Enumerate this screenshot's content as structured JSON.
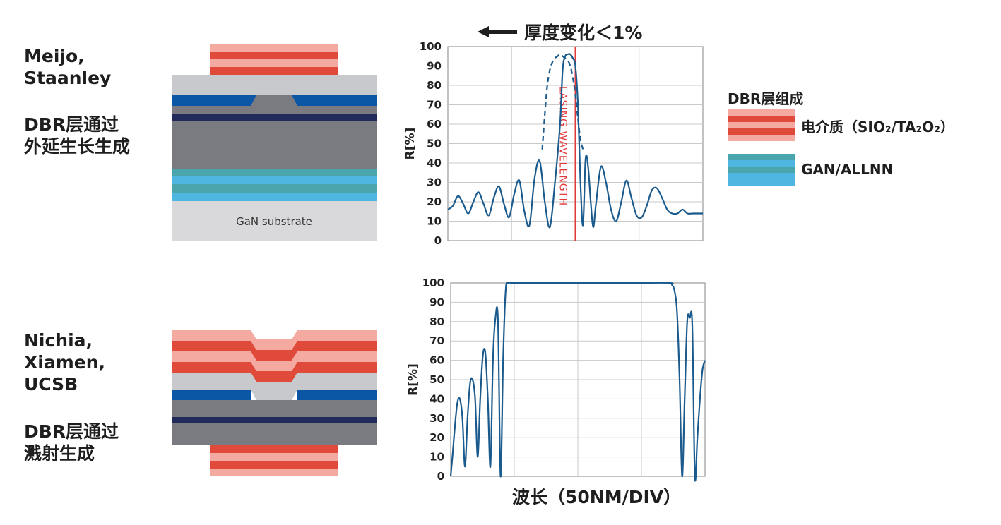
{
  "top": {
    "companies": "Meijo,\nStaanley",
    "method": "DBR层通过\n外延生长生成",
    "substrate_label": "GaN substrate"
  },
  "bottom": {
    "companies": "Nichia,\nXiamen,\nUCSB",
    "method": "DBR层通过\n溅射生成"
  },
  "annotation": {
    "arrow_icon": "left-arrow-icon",
    "text": "厚度变化＜1%",
    "lasing": "LASING WAVELENGTH"
  },
  "legend": {
    "title": "DBR层组成",
    "items": [
      {
        "label": "电介质（SIO₂/TA₂O₂）",
        "colors": [
          "#f4aaa0",
          "#e04a3a"
        ]
      },
      {
        "label": "GAN/ALLNN",
        "colors": [
          "#4aa5ad",
          "#4fb6e2"
        ]
      }
    ]
  },
  "xlabel": "波长（50NM/DIV）",
  "colors": {
    "curve": "#1a5a8c",
    "lasing_line": "#e23a3a",
    "red_dark": "#e04a3a",
    "red_light": "#f4aaa0",
    "blue_dark": "#0c56a6",
    "navy": "#222a5c",
    "gray_light": "#c8c9cc",
    "gray_dark": "#7a7b80",
    "teal": "#4aa5ad",
    "sky": "#4fb6e2",
    "substrate": "#d9d9db"
  },
  "chart_data": [
    {
      "type": "line",
      "title": "",
      "xlabel": "",
      "ylabel": "R[%]",
      "ylim": [
        0,
        100
      ],
      "yticks": [
        "0",
        "10",
        "20",
        "30",
        "40",
        "50",
        "60",
        "70",
        "80",
        "90",
        "100"
      ],
      "grid": true,
      "series": [
        {
          "style": "solid",
          "x": [
            0,
            2,
            4,
            6,
            8,
            10,
            12,
            14,
            16,
            18,
            20,
            22,
            24,
            26,
            28,
            30,
            32,
            34,
            36,
            38,
            40,
            42,
            44,
            45,
            46,
            47,
            48,
            49,
            50,
            51,
            52,
            53,
            54,
            55,
            56,
            57,
            58,
            60,
            62,
            64,
            66,
            68,
            70,
            72,
            74,
            76,
            78,
            80,
            82,
            84,
            86,
            88,
            90,
            92,
            94,
            96,
            98,
            100
          ],
          "y": [
            16,
            18,
            23,
            19,
            14,
            20,
            25,
            19,
            13,
            22,
            28,
            19,
            12,
            24,
            31,
            15,
            8,
            32,
            41,
            20,
            7,
            30,
            60,
            88,
            95,
            96,
            96,
            94,
            90,
            70,
            30,
            8,
            42,
            38,
            20,
            7,
            18,
            38,
            30,
            16,
            10,
            20,
            31,
            22,
            13,
            12,
            18,
            26,
            27,
            22,
            16,
            14,
            14,
            16,
            14,
            14,
            14,
            14
          ]
        },
        {
          "style": "dashed",
          "x": [
            37,
            38,
            39,
            40,
            41,
            42,
            43,
            44,
            45,
            46,
            47,
            48,
            49,
            50,
            51,
            52,
            53
          ],
          "y": [
            47,
            65,
            80,
            88,
            92,
            94,
            95,
            96,
            95,
            94,
            93,
            90,
            84,
            75,
            63,
            52,
            47
          ]
        }
      ],
      "markers": [
        {
          "label": "LASING WAVELENGTH",
          "x": 50
        }
      ],
      "annotation": "厚度变化＜1%"
    },
    {
      "type": "line",
      "title": "",
      "xlabel": "波长（50NM/DIV）",
      "ylabel": "R[%]",
      "ylim": [
        0,
        100
      ],
      "yticks": [
        "0",
        "10",
        "20",
        "30",
        "40",
        "50",
        "60",
        "70",
        "80",
        "90",
        "100"
      ],
      "grid": true,
      "series": [
        {
          "style": "solid",
          "x": [
            0,
            0.8,
            1.6,
            2.6,
            3.6,
            4.6,
            5.6,
            6.6,
            7.6,
            8.6,
            9.6,
            10.6,
            11.6,
            12.6,
            13.6,
            14.6,
            15.6,
            16.6,
            17.6,
            18.6,
            19.6,
            20.6,
            21.6,
            22.6,
            23.6,
            25.6,
            26.6,
            28,
            50,
            72,
            86,
            87,
            88,
            89,
            90,
            91,
            92,
            93,
            94,
            95,
            96,
            97,
            98,
            99,
            100
          ],
          "y": [
            0,
            12,
            25,
            38,
            40,
            30,
            5,
            30,
            48,
            50,
            40,
            10,
            40,
            62,
            64,
            40,
            5,
            60,
            82,
            80,
            0,
            60,
            96,
            100,
            100,
            100,
            100,
            100,
            100,
            100,
            100,
            99,
            96,
            85,
            50,
            0,
            40,
            80,
            82,
            78,
            0,
            20,
            40,
            55,
            60
          ]
        }
      ]
    }
  ]
}
